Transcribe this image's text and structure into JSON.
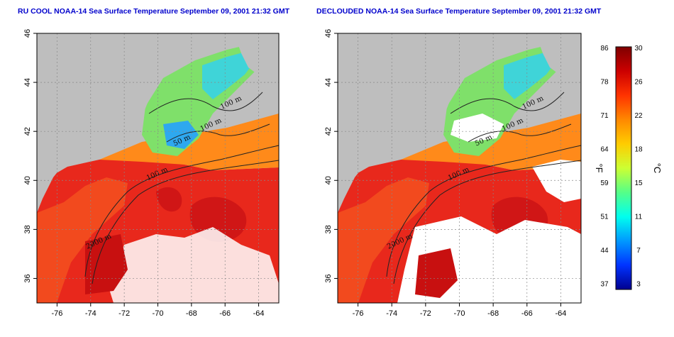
{
  "titles": {
    "left": "RU COOL NOAA-14 Sea Surface Temperature September 09, 2001 21:32 GMT",
    "right": "DECLOUDED NOAA-14 Sea Surface Temperature September 09, 2001 21:32 GMT"
  },
  "map": {
    "lon_ticks": [
      -76,
      -74,
      -72,
      -70,
      -68,
      -66,
      -64
    ],
    "lat_ticks": [
      36,
      38,
      40,
      42,
      44,
      46
    ],
    "lon_range": [
      -77.2,
      -62.8
    ],
    "lat_range": [
      35.0,
      46.0
    ],
    "contour_labels": [
      {
        "text": "100 m",
        "lon": -66.2,
        "lat": 42.9
      },
      {
        "text": "100 m",
        "lon": -67.4,
        "lat": 42.0
      },
      {
        "text": "50 m",
        "lon": -69.0,
        "lat": 41.4
      },
      {
        "text": "100 m",
        "lon": -70.6,
        "lat": 40.0
      },
      {
        "text": "2000 m",
        "lon": -74.2,
        "lat": 37.2
      }
    ]
  },
  "colorbar": {
    "fahrenheit_labels": [
      "86",
      "78",
      "71",
      "64",
      "59",
      "51",
      "44",
      "37"
    ],
    "celsius_labels": [
      "30",
      "26",
      "22",
      "18",
      "15",
      "11",
      "7",
      "3"
    ],
    "fahrenheit_unit": "°F",
    "celsius_unit": "°C",
    "colors": [
      "#7f0000",
      "#cc0000",
      "#ff3300",
      "#ff8800",
      "#ffcc00",
      "#ccff33",
      "#55ff88",
      "#00ffee",
      "#0099ff",
      "#0033ff",
      "#00008f"
    ]
  }
}
